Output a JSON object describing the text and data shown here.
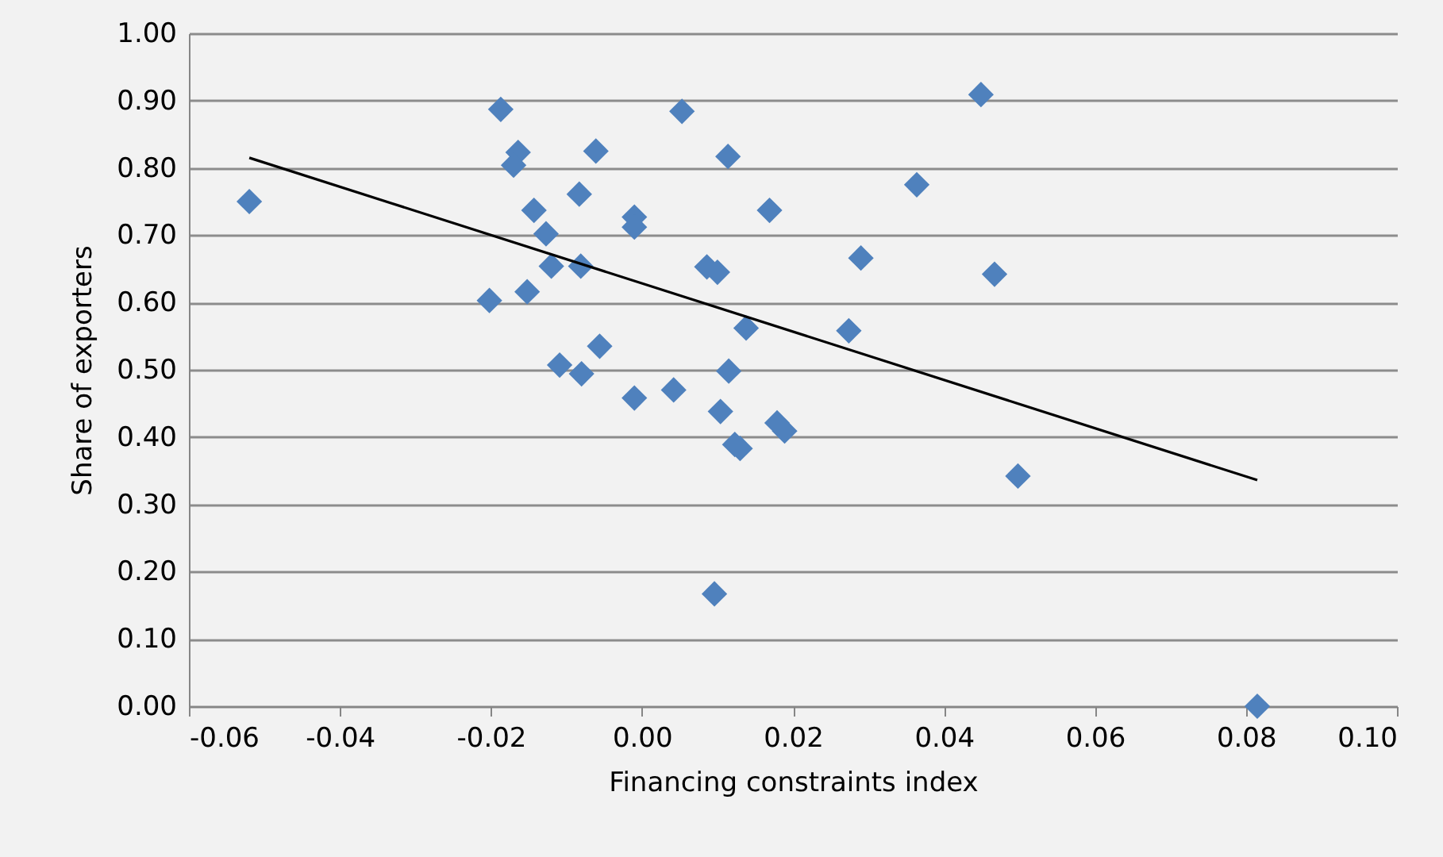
{
  "chart_data": {
    "type": "scatter",
    "xlabel": "Financing constraints index",
    "ylabel": "Share of exporters",
    "xlim": [
      -0.06,
      0.1
    ],
    "ylim": [
      0,
      1
    ],
    "xticks": [
      {
        "value": -0.06,
        "label": "-0.06"
      },
      {
        "value": -0.04,
        "label": "-0.04"
      },
      {
        "value": -0.02,
        "label": "-0.02"
      },
      {
        "value": 0,
        "label": "0.00"
      },
      {
        "value": 0.02,
        "label": "0.02"
      },
      {
        "value": 0.04,
        "label": "0.04"
      },
      {
        "value": 0.06,
        "label": "0.06"
      },
      {
        "value": 0.08,
        "label": "0.08"
      },
      {
        "value": 0.1,
        "label": "0.10"
      }
    ],
    "yticks": [
      {
        "value": 0,
        "label": "0.00"
      },
      {
        "value": 0.1,
        "label": "0.10"
      },
      {
        "value": 0.2,
        "label": "0.20"
      },
      {
        "value": 0.3,
        "label": "0.30"
      },
      {
        "value": 0.4,
        "label": "0.40"
      },
      {
        "value": 0.5,
        "label": "0.50"
      },
      {
        "value": 0.6,
        "label": "0.60"
      },
      {
        "value": 0.7,
        "label": "0.70"
      },
      {
        "value": 0.8,
        "label": "0.80"
      },
      {
        "value": 0.9,
        "label": "0.90"
      },
      {
        "value": 1,
        "label": "1.00"
      }
    ],
    "grid": "y",
    "marker": "diamond",
    "series": [
      {
        "type": "scatter",
        "color": "#4f81bd",
        "x": [
          -0.052,
          -0.0187,
          -0.0164,
          -0.017,
          -0.0061,
          0.0053,
          0.0114,
          0.0169,
          -0.0143,
          -0.0083,
          -0.0127,
          -0.001,
          -0.001,
          -0.012,
          -0.0081,
          0.0086,
          0.01,
          -0.0202,
          -0.0152,
          0.0138,
          -0.0109,
          -0.008,
          -0.0056,
          -0.001,
          0.0042,
          0.0115,
          0.0104,
          0.0123,
          0.013,
          0.0096,
          0.0449,
          0.0364,
          0.029,
          0.0467,
          0.0274,
          0.0179,
          0.0189,
          0.0498,
          0.0815
        ],
        "values": [
          0.75,
          0.887,
          0.823,
          0.804,
          0.825,
          0.884,
          0.817,
          0.737,
          0.737,
          0.761,
          0.702,
          0.727,
          0.712,
          0.654,
          0.654,
          0.653,
          0.645,
          0.603,
          0.616,
          0.562,
          0.507,
          0.494,
          0.535,
          0.458,
          0.47,
          0.498,
          0.438,
          0.389,
          0.383,
          0.167,
          0.909,
          0.775,
          0.666,
          0.642,
          0.558,
          0.421,
          0.409,
          0.342,
          0.0
        ]
      },
      {
        "type": "line",
        "color": "#000000",
        "marker": "none",
        "x": [
          -0.052,
          0.0815
        ],
        "values": [
          0.815,
          0.336
        ]
      }
    ]
  }
}
